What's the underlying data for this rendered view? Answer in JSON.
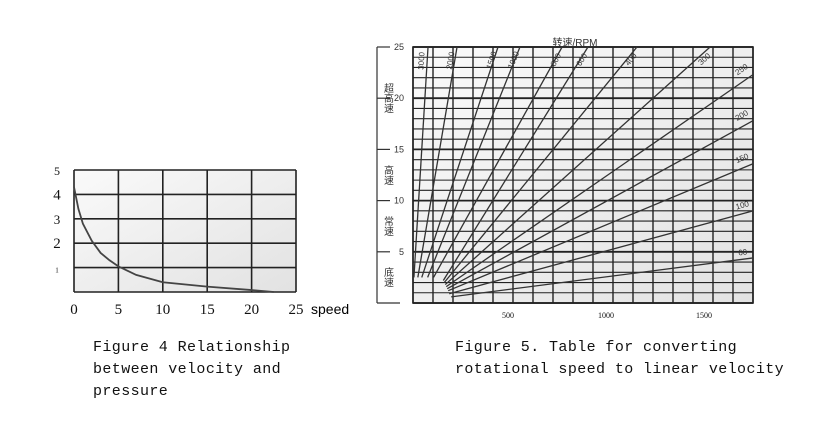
{
  "chart_data": [
    {
      "type": "line",
      "xlabel": "speed",
      "ylabel": "",
      "xlim": [
        0,
        25
      ],
      "ylim": [
        0,
        5
      ],
      "x_ticks": [
        "0",
        "5",
        "10",
        "15",
        "20",
        "25"
      ],
      "y_ticks": [
        "1",
        "2",
        "3",
        "4",
        "5"
      ],
      "grid": true,
      "series": [
        {
          "x": [
            0,
            0.5,
            1,
            2,
            3,
            4,
            5,
            7,
            10,
            15,
            20,
            22.5
          ],
          "y": [
            4.3,
            3.4,
            2.8,
            2.1,
            1.6,
            1.3,
            1.05,
            0.7,
            0.4,
            0.22,
            0.08,
            0.0
          ]
        }
      ]
    },
    {
      "type": "line",
      "title": "转速/RPM",
      "xlim": [
        0,
        1750
      ],
      "ylim": [
        0,
        25
      ],
      "x_ticks": [
        "500",
        "1000",
        "1500"
      ],
      "y_ticks": [
        "5",
        "10",
        "15",
        "20",
        "25"
      ],
      "grid": true,
      "speed_bands": [
        "超高速",
        "高速",
        "常速",
        "底速"
      ],
      "series": [
        {
          "name": "3000",
          "x": [
            20,
            92
          ],
          "y": [
            2.5,
            25
          ]
        },
        {
          "name": "2000",
          "x": [
            40,
            240
          ],
          "y": [
            2.5,
            25
          ]
        },
        {
          "name": "1500",
          "x": [
            60,
            449
          ],
          "y": [
            2.5,
            25
          ]
        },
        {
          "name": "1000",
          "x": [
            90,
            561
          ],
          "y": [
            2.5,
            25
          ]
        },
        {
          "name": "800",
          "x": [
            120,
            776
          ],
          "y": [
            2.5,
            25
          ]
        },
        {
          "name": "600",
          "x": [
            170,
            908
          ],
          "y": [
            2.2,
            25
          ]
        },
        {
          "name": "400",
          "x": [
            175,
            1158
          ],
          "y": [
            2.0,
            25
          ]
        },
        {
          "name": "300",
          "x": [
            180,
            1531
          ],
          "y": [
            1.8,
            25
          ]
        },
        {
          "name": "250",
          "x": [
            185,
            1750
          ],
          "y": [
            1.6,
            22.3
          ]
        },
        {
          "name": "200",
          "x": [
            190,
            1750
          ],
          "y": [
            1.4,
            17.8
          ]
        },
        {
          "name": "150",
          "x": [
            195,
            1750
          ],
          "y": [
            1.2,
            13.6
          ]
        },
        {
          "name": "100",
          "x": [
            200,
            1750
          ],
          "y": [
            0.9,
            9.0
          ]
        },
        {
          "name": "60",
          "x": [
            210,
            1750
          ],
          "y": [
            0.6,
            4.4
          ]
        }
      ]
    }
  ],
  "captions": {
    "fig4": [
      "Figure 4 Relationship",
      "between velocity and",
      "pressure"
    ],
    "fig5": [
      "Figure 5. Table for converting",
      "rotational speed to linear velocity"
    ]
  }
}
